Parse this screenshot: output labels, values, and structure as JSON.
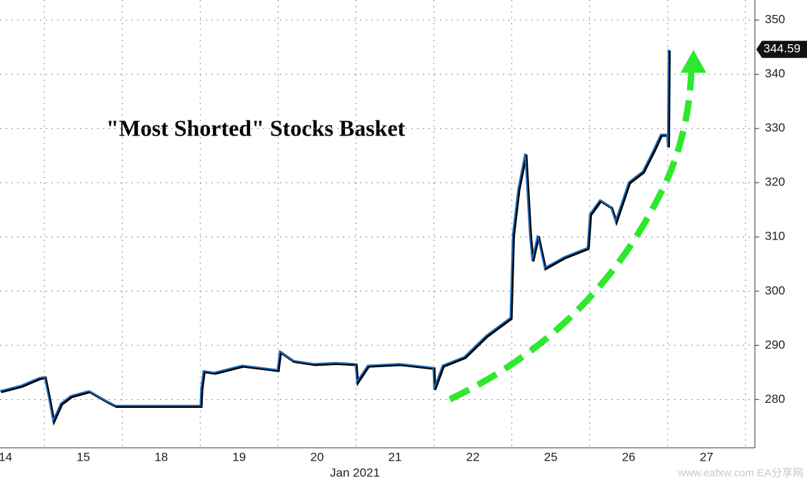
{
  "chart_data": {
    "type": "line",
    "title": "\"Most Shorted\" Stocks Basket",
    "xlabel": "Jan 2021",
    "watermark": "www.eafxw.com  EA分享网",
    "last_value_label": "344.59",
    "xlim": [
      -0.07,
      9.62
    ],
    "ylim": [
      271.1,
      353.7
    ],
    "xticks": [
      {
        "value": 0,
        "label": "14"
      },
      {
        "value": 1,
        "label": "15"
      },
      {
        "value": 2,
        "label": "18"
      },
      {
        "value": 3,
        "label": "19"
      },
      {
        "value": 4,
        "label": "20"
      },
      {
        "value": 5,
        "label": "21"
      },
      {
        "value": 6,
        "label": "22"
      },
      {
        "value": 7,
        "label": "25"
      },
      {
        "value": 8,
        "label": "26"
      },
      {
        "value": 9,
        "label": "27"
      }
    ],
    "yticks": [
      280,
      290,
      300,
      310,
      320,
      330,
      340,
      350
    ],
    "grid": true,
    "series": [
      {
        "color": "#1f6cc0",
        "x": [
          -0.07,
          0.2,
          0.43,
          0.5,
          0.55,
          0.61,
          0.71,
          0.84,
          1.07,
          1.3,
          1.41,
          1.5,
          2.5,
          2.51,
          2.54,
          2.68,
          3.04,
          3.49,
          3.52,
          3.69,
          3.96,
          4.24,
          4.49,
          4.51,
          4.65,
          5.06,
          5.49,
          5.5,
          5.61,
          5.89,
          6.17,
          6.48,
          6.51,
          6.58,
          6.67,
          6.73,
          6.76,
          6.83,
          6.92,
          7.17,
          7.47,
          7.5,
          7.63,
          7.77,
          7.83,
          8.0,
          8.18,
          8.32,
          8.41,
          8.49,
          8.5,
          8.51
        ],
        "values": [
          281.6,
          282.6,
          284.0,
          284.2,
          280.7,
          276.1,
          279.3,
          280.7,
          281.6,
          279.7,
          278.9,
          278.9,
          278.9,
          282.0,
          285.3,
          285.0,
          286.3,
          285.5,
          288.9,
          287.2,
          286.6,
          286.8,
          286.6,
          283.3,
          286.3,
          286.6,
          285.9,
          282.0,
          286.3,
          287.9,
          291.8,
          295.1,
          310.3,
          318.8,
          325.4,
          310.3,
          305.7,
          310.3,
          304.3,
          306.3,
          308.0,
          314.2,
          316.8,
          315.5,
          312.9,
          320.1,
          322.1,
          326.1,
          328.9,
          328.9,
          326.7,
          344.59
        ]
      }
    ]
  }
}
